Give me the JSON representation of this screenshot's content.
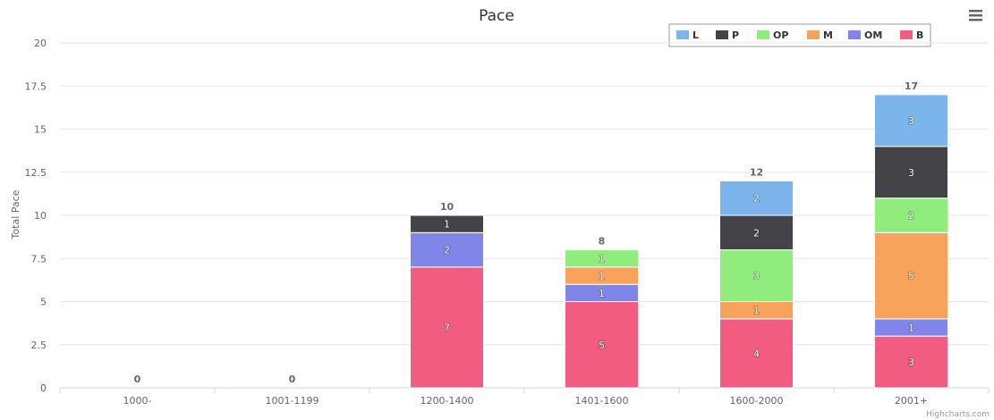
{
  "chart_data": {
    "type": "bar",
    "stacked": true,
    "title": "Pace",
    "xlabel": "",
    "ylabel": "Total Pace",
    "ylim": [
      0,
      20
    ],
    "yticks": [
      "0",
      "2.5",
      "5",
      "7.5",
      "10",
      "12.5",
      "15",
      "17.5",
      "20"
    ],
    "categories": [
      "1000-",
      "1001-1199",
      "1200-1400",
      "1401-1600",
      "1600-2000",
      "2001+"
    ],
    "totals": [
      0,
      0,
      10,
      8,
      12,
      17
    ],
    "legend_position": "top-right",
    "grid": true,
    "series": [
      {
        "name": "L",
        "color": "#7cb5ec",
        "values": [
          0,
          0,
          0,
          0,
          2,
          3
        ]
      },
      {
        "name": "P",
        "color": "#434348",
        "values": [
          0,
          0,
          1,
          0,
          2,
          3
        ]
      },
      {
        "name": "OP",
        "color": "#90ed7d",
        "values": [
          0,
          0,
          0,
          1,
          3,
          2
        ]
      },
      {
        "name": "M",
        "color": "#f7a35c",
        "values": [
          0,
          0,
          0,
          1,
          1,
          5
        ]
      },
      {
        "name": "OM",
        "color": "#8085e9",
        "values": [
          0,
          0,
          2,
          1,
          0,
          1
        ]
      },
      {
        "name": "B",
        "color": "#f15c80",
        "values": [
          0,
          0,
          7,
          5,
          4,
          3
        ]
      }
    ]
  },
  "credits": "Highcharts.com",
  "menu_icon": "hamburger-menu-icon"
}
